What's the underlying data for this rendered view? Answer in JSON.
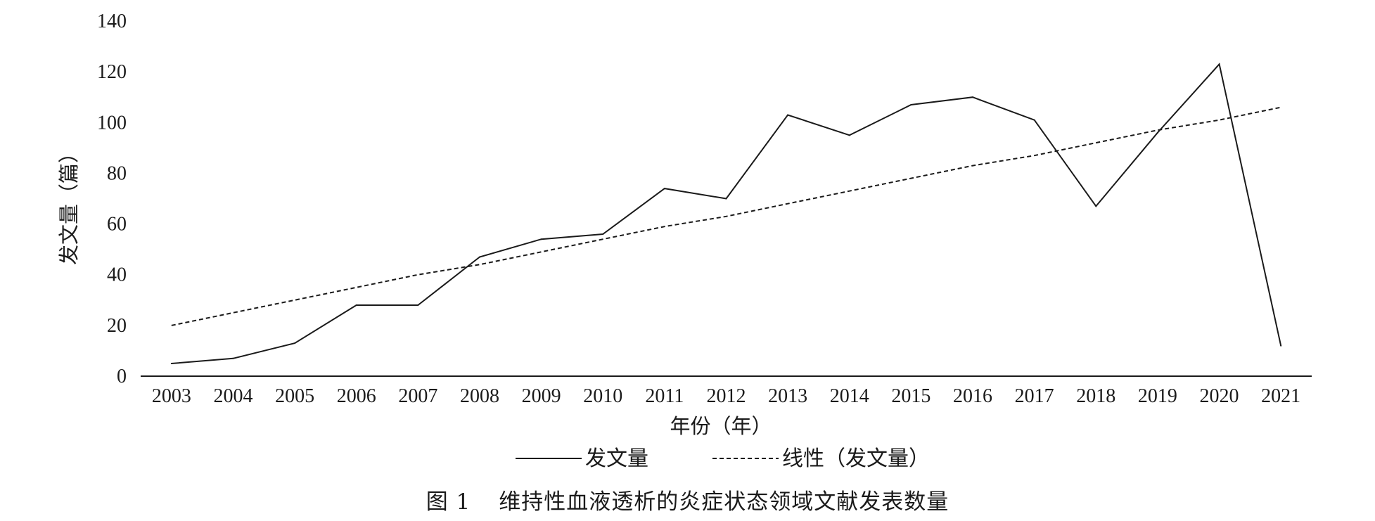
{
  "chart_data": {
    "type": "line",
    "title": "",
    "xlabel": "年份（年）",
    "ylabel": "发文量（篇）",
    "x": [
      "2003",
      "2004",
      "2005",
      "2006",
      "2007",
      "2008",
      "2009",
      "2010",
      "2011",
      "2012",
      "2013",
      "2014",
      "2015",
      "2016",
      "2017",
      "2018",
      "2019",
      "2020",
      "2021"
    ],
    "ylim": [
      0,
      140
    ],
    "yticks": [
      0,
      20,
      40,
      60,
      80,
      100,
      120,
      140
    ],
    "grid": false,
    "legend_position": "bottom",
    "series": [
      {
        "name": "发文量",
        "style": "solid",
        "values": [
          5,
          7,
          13,
          28,
          28,
          47,
          54,
          56,
          74,
          70,
          103,
          95,
          107,
          110,
          101,
          67,
          96,
          123,
          12
        ]
      },
      {
        "name": "线性（发文量）",
        "style": "dashed",
        "values": [
          20,
          25,
          30,
          35,
          40,
          44,
          49,
          54,
          59,
          63,
          68,
          73,
          78,
          83,
          87,
          92,
          97,
          101,
          106
        ]
      }
    ],
    "colors": {
      "line": "#1a1a1a",
      "axis": "#1a1a1a"
    }
  },
  "caption": {
    "label": "图 1",
    "text": "维持性血液透析的炎症状态领域文献发表数量"
  }
}
